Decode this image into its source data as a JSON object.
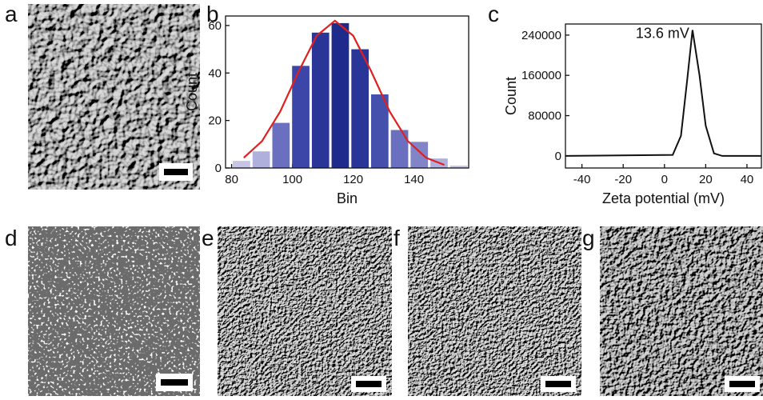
{
  "panel_labels": [
    "a",
    "b",
    "c",
    "d",
    "e",
    "f",
    "g"
  ],
  "chart_data": [
    {
      "type": "histogram",
      "xlabel": "Bin",
      "ylabel": "Count",
      "bins": [
        80,
        86.5,
        93,
        99.5,
        106,
        112.5,
        119,
        125.5,
        132,
        138.5,
        145,
        151.5,
        158
      ],
      "values": [
        3,
        7,
        19,
        43,
        57,
        61,
        50,
        31,
        16,
        11,
        4,
        1
      ],
      "colors": [
        "#c5c5e6",
        "#b0b0dc",
        "#6a6fc0",
        "#3c46a8",
        "#2a3598",
        "#1e2a8c",
        "#2a3598",
        "#4550ad",
        "#6a6fc0",
        "#8185c8",
        "#b0b0dc",
        "#c5c5e6"
      ],
      "fit": {
        "color": "#e02020",
        "x": [
          84,
          90,
          96,
          102,
          108,
          114,
          120,
          126,
          132,
          138,
          144,
          150
        ],
        "values": [
          4.3,
          11.3,
          23.8,
          40.5,
          55.7,
          62,
          55.7,
          40.5,
          23.8,
          11.3,
          4.3,
          1.3
        ]
      },
      "xlim": [
        78,
        158
      ],
      "ylim": [
        0,
        64
      ],
      "xticks": [
        80,
        100,
        120,
        140
      ],
      "yticks": [
        0,
        20,
        40,
        60
      ]
    },
    {
      "type": "line",
      "xlabel": "Zeta potential (mV)",
      "ylabel": "Count",
      "x": [
        -48,
        4,
        8,
        11,
        13.6,
        17,
        20,
        24,
        28,
        47
      ],
      "values": [
        0,
        2000,
        40000,
        150000,
        250000,
        160000,
        60000,
        5000,
        0,
        0
      ],
      "color": "#111111",
      "annotation": "13.6 mV",
      "xlim": [
        -48,
        47
      ],
      "ylim": [
        -24000,
        262000
      ],
      "xticks": [
        -40,
        -20,
        0,
        20,
        40
      ],
      "yticks": [
        0,
        80000,
        160000,
        240000
      ]
    }
  ]
}
